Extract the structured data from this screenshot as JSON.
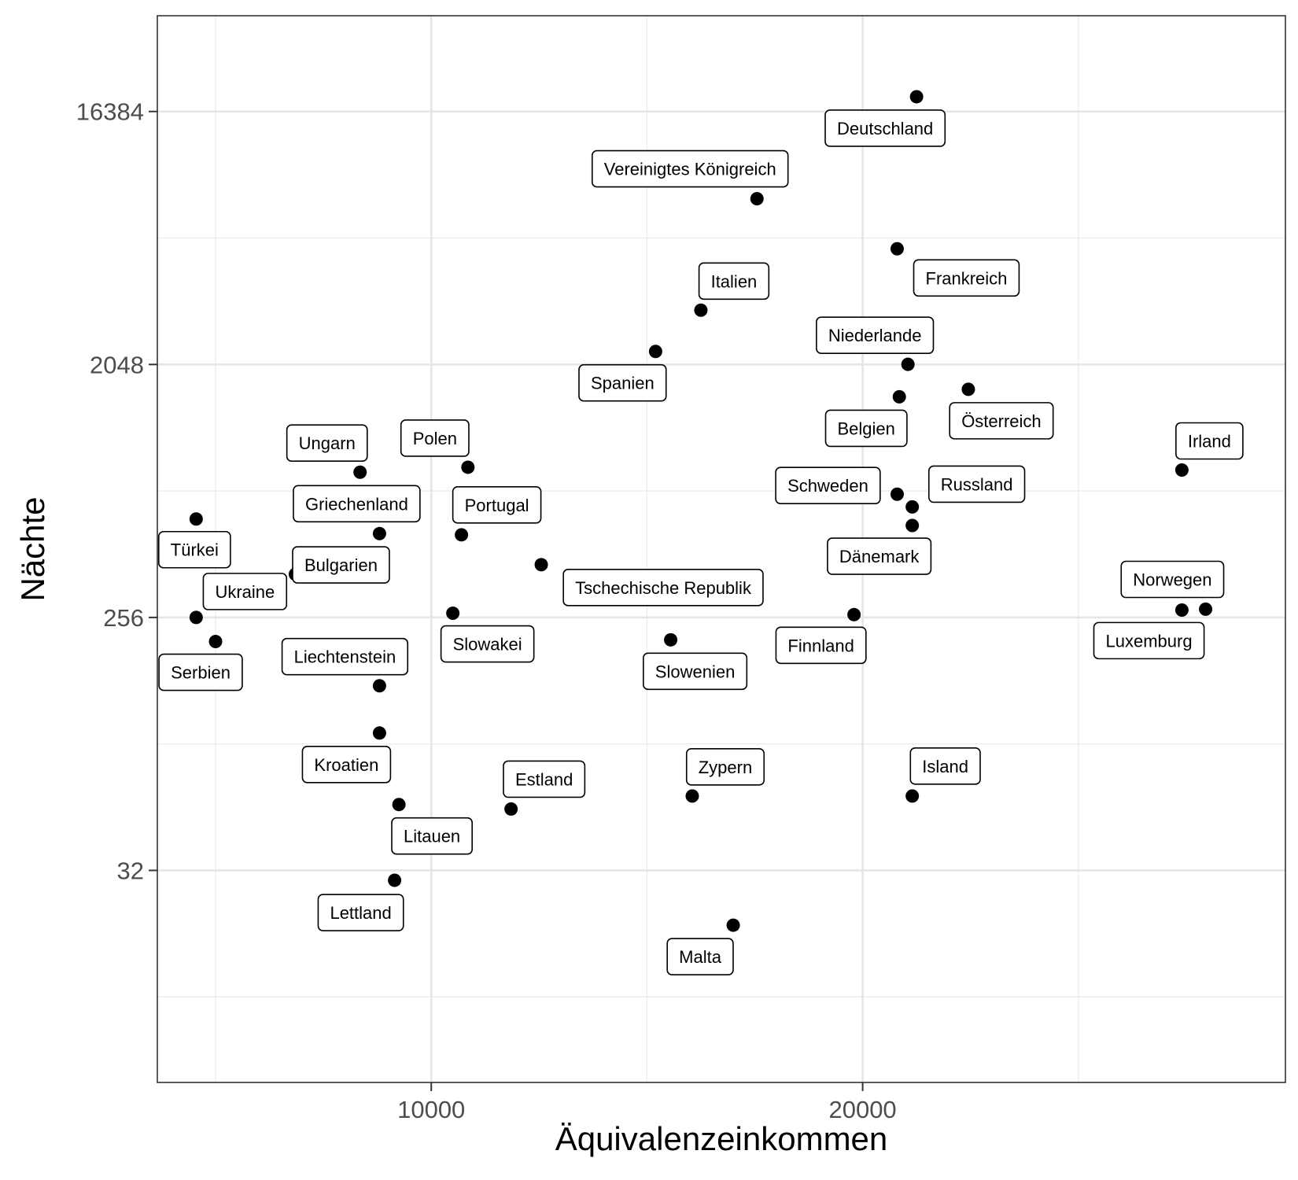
{
  "chart_data": {
    "type": "scatter",
    "xlabel": "Äquivalenzeinkommen",
    "ylabel": "Nächte",
    "x_ticks": [
      10000,
      20000
    ],
    "y_ticks": [
      32,
      256,
      2048,
      16384
    ],
    "y_scale": "log2",
    "xlim": [
      3650,
      29800
    ],
    "ylim": [
      5.6,
      36000
    ],
    "grid": true,
    "points": [
      {
        "label": "Deutschland",
        "x": 21250,
        "y": 18500
      },
      {
        "label": "Vereinigtes Königreich",
        "x": 17550,
        "y": 8000
      },
      {
        "label": "Frankreich",
        "x": 20800,
        "y": 5300
      },
      {
        "label": "Italien",
        "x": 16250,
        "y": 3200
      },
      {
        "label": "Spanien",
        "x": 15200,
        "y": 2280
      },
      {
        "label": "Niederlande",
        "x": 21050,
        "y": 2050
      },
      {
        "label": "Belgien",
        "x": 20850,
        "y": 1570
      },
      {
        "label": "Österreich",
        "x": 22450,
        "y": 1670
      },
      {
        "label": "Irland",
        "x": 27400,
        "y": 860
      },
      {
        "label": "Ungarn",
        "x": 8350,
        "y": 845
      },
      {
        "label": "Polen",
        "x": 10850,
        "y": 880
      },
      {
        "label": "Schweden",
        "x": 20800,
        "y": 705
      },
      {
        "label": "Russland",
        "x": 21150,
        "y": 635
      },
      {
        "label": "Dänemark",
        "x": 21150,
        "y": 545
      },
      {
        "label": "Griechenland",
        "x": 8800,
        "y": 510
      },
      {
        "label": "Portugal",
        "x": 10700,
        "y": 505
      },
      {
        "label": "Türkei",
        "x": 4550,
        "y": 575
      },
      {
        "label": "Bulgarien",
        "x": 6850,
        "y": 365
      },
      {
        "label": "Tschechische Republik",
        "x": 12550,
        "y": 395
      },
      {
        "label": "Slowakei",
        "x": 10500,
        "y": 265
      },
      {
        "label": "Finnland",
        "x": 19800,
        "y": 262
      },
      {
        "label": "Ukraine",
        "x": 4550,
        "y": 256
      },
      {
        "label": "Serbien",
        "x": 5000,
        "y": 210
      },
      {
        "label": "Slowenien",
        "x": 15550,
        "y": 213
      },
      {
        "label": "Norwegen",
        "x": 27400,
        "y": 272
      },
      {
        "label": "Luxemburg",
        "x": 27950,
        "y": 274
      },
      {
        "label": "Liechtenstein",
        "x": 8800,
        "y": 146
      },
      {
        "label": "Kroatien",
        "x": 8800,
        "y": 99
      },
      {
        "label": "Zypern",
        "x": 16050,
        "y": 59
      },
      {
        "label": "Island",
        "x": 21150,
        "y": 59
      },
      {
        "label": "Estland",
        "x": 11850,
        "y": 53
      },
      {
        "label": "Litauen",
        "x": 9250,
        "y": 55
      },
      {
        "label": "Lettland",
        "x": 9150,
        "y": 29.5
      },
      {
        "label": "Malta",
        "x": 17000,
        "y": 20.4
      }
    ],
    "point_color": "#000000"
  }
}
